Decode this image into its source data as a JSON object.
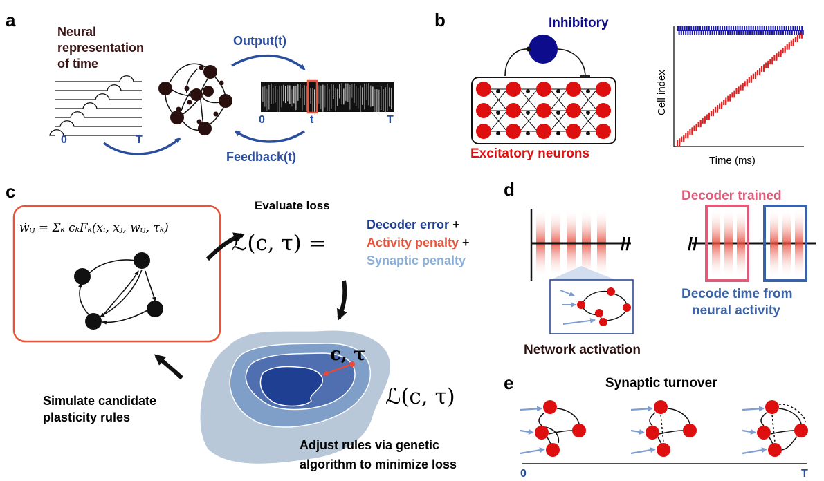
{
  "panels": {
    "a": {
      "letter": "a",
      "title_lines": [
        "Neural",
        "representation",
        "of time"
      ],
      "output_label": "Output(t)",
      "feedback_label": "Feedback(t)",
      "axis_zero": "0",
      "axis_T": "T",
      "spec_zero": "0",
      "spec_t": "t",
      "spec_T": "T"
    },
    "b": {
      "letter": "b",
      "inhibitory_label": "Inhibitory",
      "excitatory_label": "Excitatory neurons",
      "ylabel": "Cell index",
      "xlabel": "Time (ms)"
    },
    "c": {
      "letter": "c",
      "rule_equation": "ẇᵢⱼ = Σₖ cₖFₖ(xᵢ, xⱼ, wᵢⱼ, τₖ)",
      "evaluate_loss": "Evaluate loss",
      "loss_expr": "ℒ(c, τ) =",
      "terms": [
        {
          "text": "Decoder error",
          "suffix": " +",
          "color": "#1f3f93"
        },
        {
          "text": "Activity penalty",
          "suffix": " +",
          "color": "#e8533a"
        },
        {
          "text": "Synaptic penalty",
          "suffix": "",
          "color": "#8aaed6"
        }
      ],
      "landscape_point": "c, τ",
      "landscape_loss": "ℒ(c, τ)",
      "simulate_lines": [
        "Simulate candidate",
        "plasticity rules"
      ],
      "adjust_lines": [
        "Adjust rules via genetic",
        "algorithm to minimize loss"
      ]
    },
    "d": {
      "letter": "d",
      "decoder_trained": "Decoder trained",
      "decode_lines": [
        "Decode time from",
        "neural activity"
      ],
      "network_activation": "Network activation"
    },
    "e": {
      "letter": "e",
      "title": "Synaptic turnover",
      "axis_zero": "0",
      "axis_T": "T"
    }
  },
  "colors": {
    "neuron_dark": "#2a0f0f",
    "excitatory": "#dd0f0f",
    "inhibitory": "#0c0c8c",
    "arrow_blue": "#2a4d9c",
    "highlight": "#e8533a",
    "decoder_pink": "#e05a7a",
    "decode_blue": "#3a62a8"
  }
}
